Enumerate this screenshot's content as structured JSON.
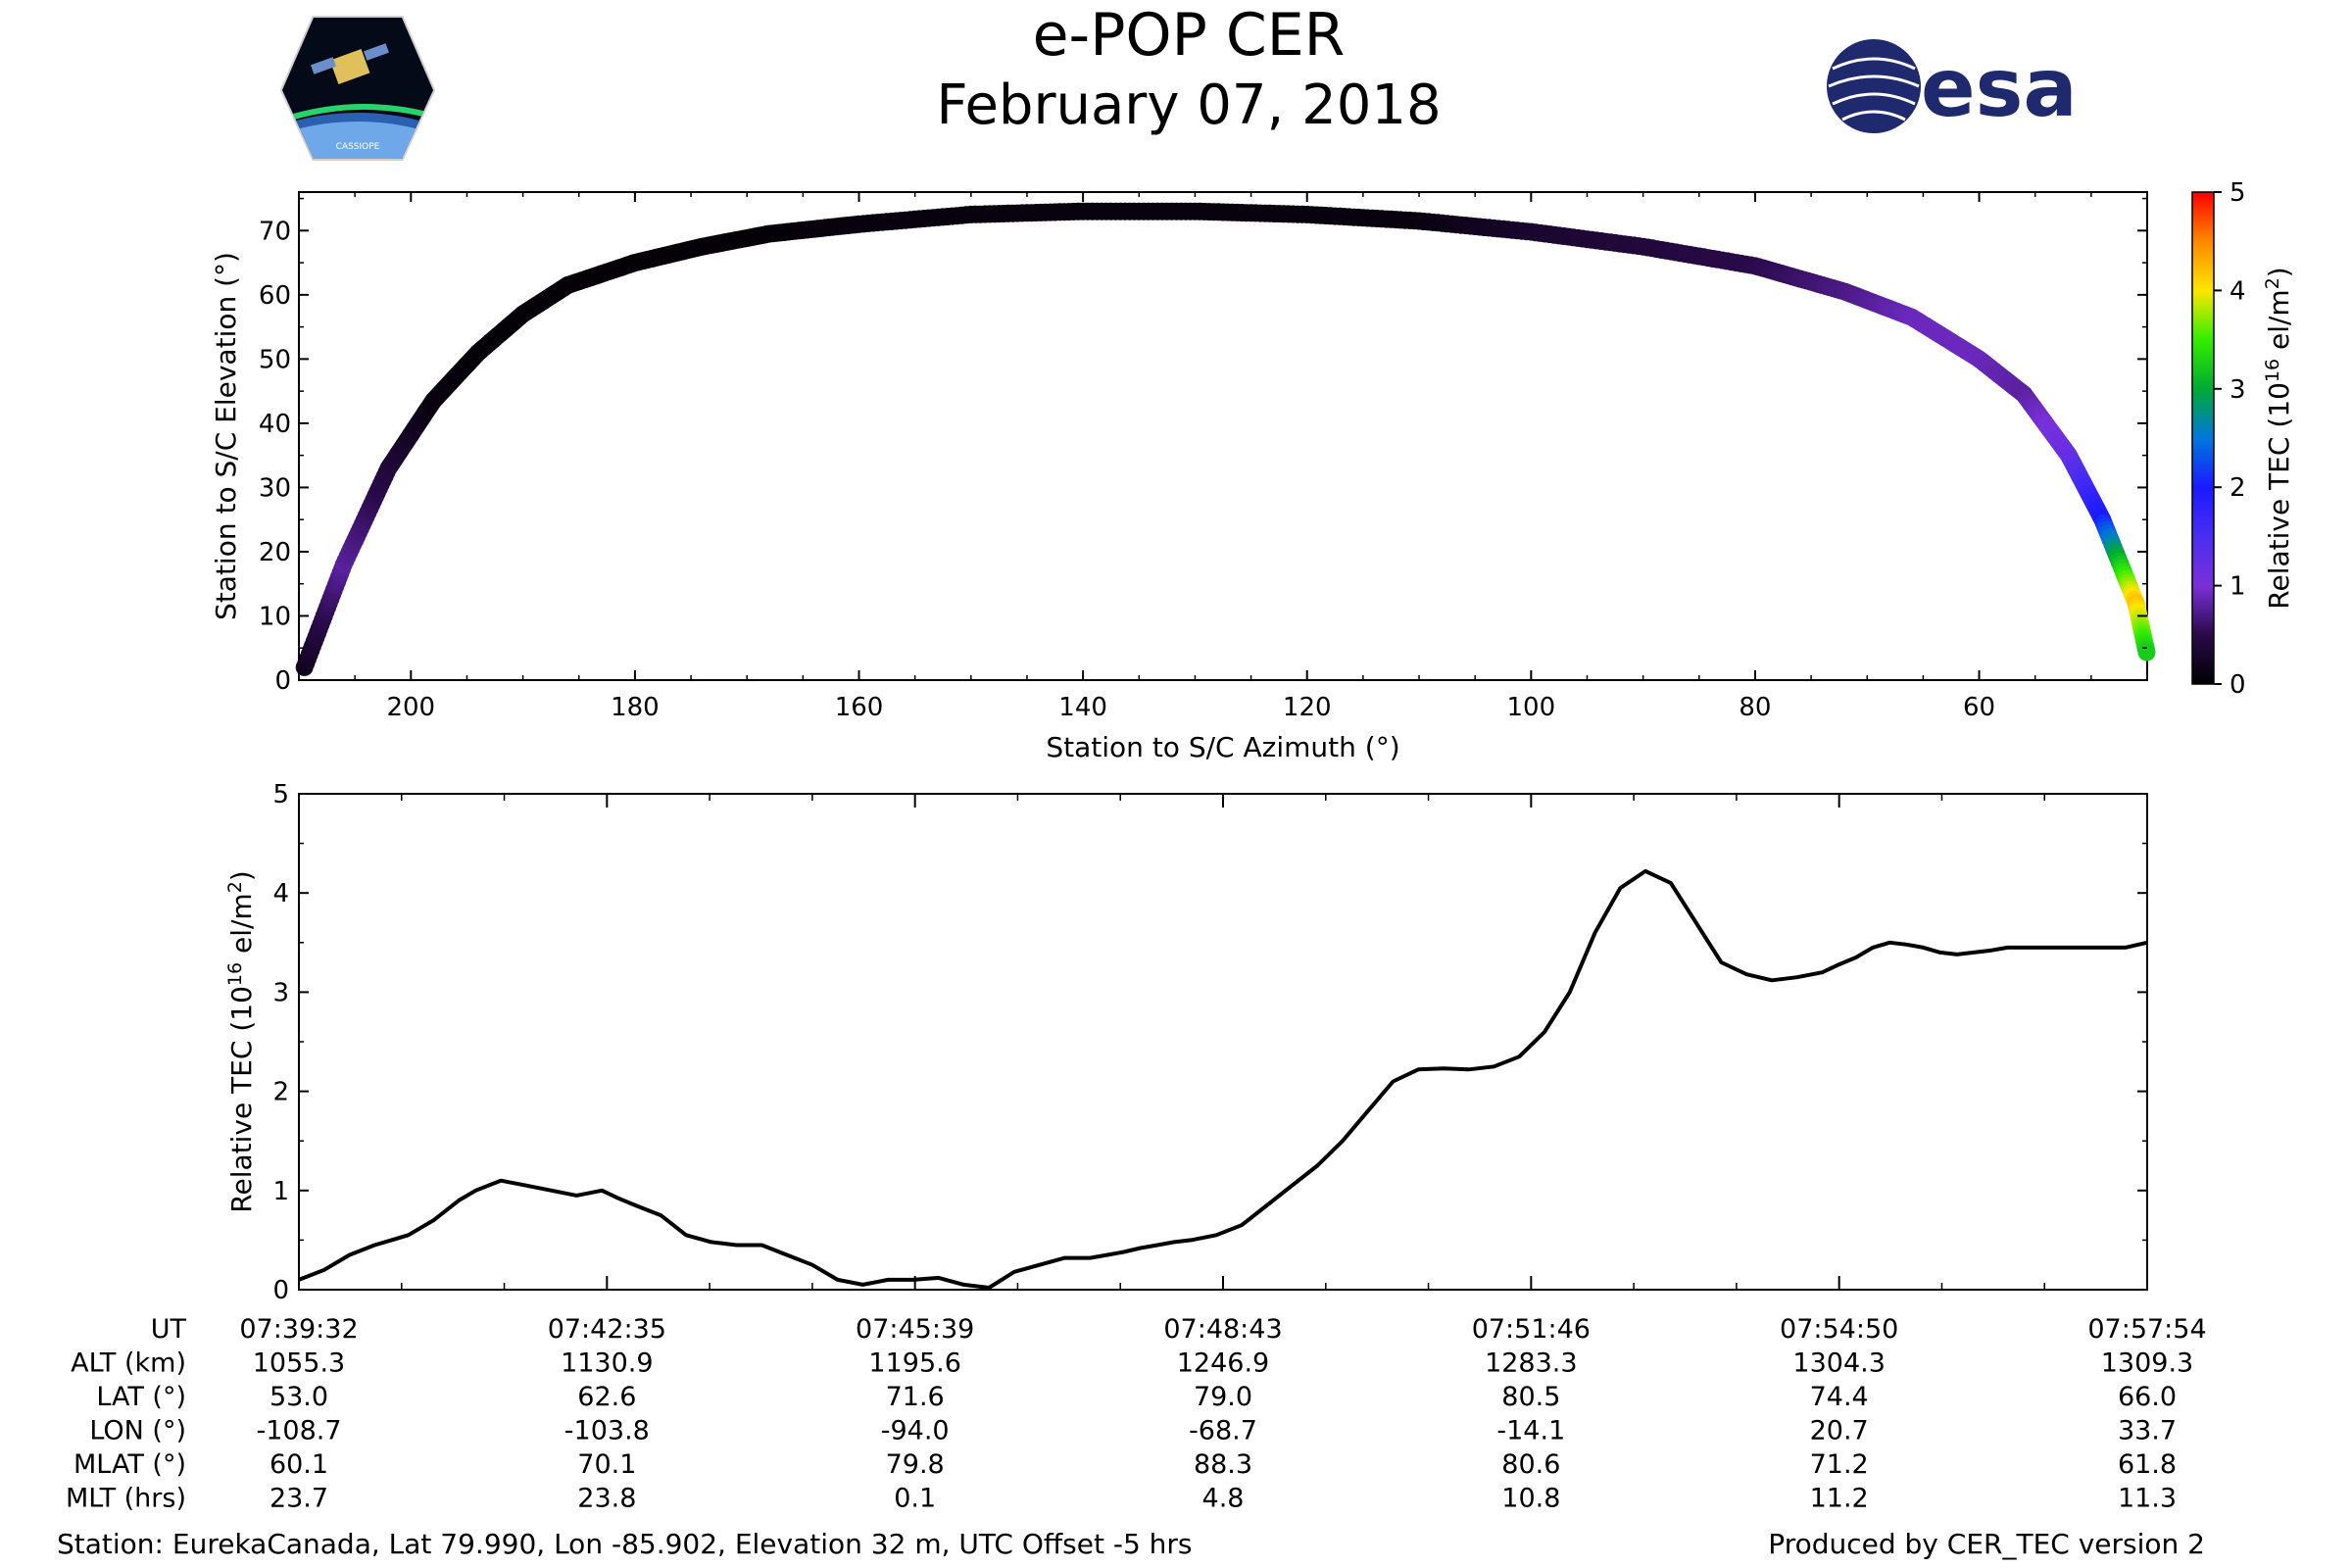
{
  "header": {
    "title": "e-POP CER",
    "date": "February 07, 2018",
    "left_logo": "cassiope-mission-badge",
    "right_logo": "esa-logo",
    "right_logo_text": "esa",
    "badge_text": "CASSIOPE"
  },
  "colors": {
    "arc_track": "#1b0f2e",
    "line": "#000000",
    "esa_blue": "#1f2a6e"
  },
  "chart_data": [
    {
      "type": "scatter",
      "title": "",
      "xlabel": "Station to S/C Azimuth (°)",
      "ylabel": "Station to S/C Elevation (°)",
      "xlim": [
        210,
        45
      ],
      "ylim": [
        0,
        76
      ],
      "xticks": [
        "200",
        "180",
        "160",
        "140",
        "120",
        "100",
        "80",
        "60"
      ],
      "yticks": [
        "0",
        "10",
        "20",
        "30",
        "40",
        "50",
        "60",
        "70"
      ],
      "colorbar": {
        "label_main": "Relative TEC (10",
        "label_sup": "16",
        "label_tail": " el/m",
        "label_sup2": "2",
        "label_end": ")",
        "range": [
          0,
          5
        ],
        "ticks": [
          "0",
          "1",
          "2",
          "3",
          "4",
          "5"
        ]
      },
      "x": [
        209.5,
        206,
        202,
        198,
        194,
        190,
        186,
        180,
        174,
        168,
        160,
        150,
        140,
        130,
        120,
        110,
        100,
        90,
        80,
        72,
        66,
        60,
        56,
        52,
        49,
        46,
        45
      ],
      "y": [
        2,
        18,
        33,
        43.5,
        51,
        57,
        61.5,
        65,
        67.5,
        69.5,
        71,
        72.5,
        73,
        73,
        72.5,
        71.5,
        69.8,
        67.5,
        64.5,
        60.5,
        56.5,
        50,
        44.5,
        35,
        25,
        12,
        4
      ],
      "tec": [
        0.2,
        0.8,
        0.4,
        0.1,
        0.05,
        0.05,
        0.05,
        0.05,
        0.05,
        0.05,
        0.1,
        0.1,
        0.1,
        0.1,
        0.1,
        0.1,
        0.3,
        0.4,
        0.5,
        0.7,
        0.9,
        0.9,
        0.8,
        1.2,
        2.0,
        4.2,
        3.2
      ]
    },
    {
      "type": "line",
      "title": "",
      "xlabel": "",
      "ylabel_main": "Relative TEC (10",
      "ylabel_sup": "16",
      "ylabel_tail": " el/m",
      "ylabel_sup2": "2",
      "ylabel_end": ")",
      "xlim": [
        0,
        1098
      ],
      "ylim": [
        0,
        5
      ],
      "yticks": [
        "0",
        "1",
        "2",
        "3",
        "4",
        "5"
      ],
      "series": [
        {
          "name": "Relative TEC",
          "x": [
            0,
            15,
            30,
            45,
            55,
            65,
            80,
            95,
            105,
            120,
            135,
            150,
            165,
            180,
            190,
            200,
            215,
            230,
            245,
            260,
            275,
            290,
            305,
            320,
            335,
            350,
            365,
            380,
            395,
            410,
            425,
            440,
            455,
            470,
            480,
            490,
            500,
            510,
            520,
            530,
            545,
            560,
            575,
            590,
            605,
            620,
            635,
            650,
            665,
            680,
            695,
            710,
            725,
            740,
            755,
            770,
            785,
            800,
            815,
            830,
            845,
            860,
            875,
            890,
            905,
            915,
            925,
            935,
            945,
            955,
            965,
            975,
            985,
            995,
            1005,
            1015,
            1030,
            1045,
            1060,
            1075,
            1085,
            1098
          ],
          "y": [
            0.1,
            0.2,
            0.35,
            0.45,
            0.5,
            0.55,
            0.7,
            0.9,
            1.0,
            1.1,
            1.05,
            1.0,
            0.95,
            1.0,
            0.92,
            0.85,
            0.75,
            0.55,
            0.48,
            0.45,
            0.45,
            0.35,
            0.25,
            0.1,
            0.05,
            0.1,
            0.1,
            0.12,
            0.05,
            0.02,
            0.18,
            0.25,
            0.32,
            0.32,
            0.35,
            0.38,
            0.42,
            0.45,
            0.48,
            0.5,
            0.55,
            0.65,
            0.85,
            1.05,
            1.25,
            1.5,
            1.8,
            2.1,
            2.22,
            2.23,
            2.22,
            2.25,
            2.35,
            2.6,
            3.0,
            3.6,
            4.05,
            4.22,
            4.1,
            3.7,
            3.3,
            3.18,
            3.12,
            3.15,
            3.2,
            3.28,
            3.35,
            3.45,
            3.5,
            3.48,
            3.45,
            3.4,
            3.38,
            3.4,
            3.42,
            3.45,
            3.45,
            3.45,
            3.45,
            3.45,
            3.45,
            3.5
          ]
        }
      ]
    }
  ],
  "table": {
    "row_labels": [
      "UT",
      "ALT (km)",
      "LAT (°)",
      "LON (°)",
      "MLAT (°)",
      "MLT (hrs)"
    ],
    "columns": [
      [
        "07:39:32",
        "1055.3",
        "53.0",
        "-108.7",
        "60.1",
        "23.7"
      ],
      [
        "07:42:35",
        "1130.9",
        "62.6",
        "-103.8",
        "70.1",
        "23.8"
      ],
      [
        "07:45:39",
        "1195.6",
        "71.6",
        "-94.0",
        "79.8",
        "0.1"
      ],
      [
        "07:48:43",
        "1246.9",
        "79.0",
        "-68.7",
        "88.3",
        "4.8"
      ],
      [
        "07:51:46",
        "1283.3",
        "80.5",
        "-14.1",
        "80.6",
        "10.8"
      ],
      [
        "07:54:50",
        "1304.3",
        "74.4",
        "20.7",
        "71.2",
        "11.2"
      ],
      [
        "07:57:54",
        "1309.3",
        "66.0",
        "33.7",
        "61.8",
        "11.3"
      ]
    ]
  },
  "footer": {
    "station": "Station: EurekaCanada, Lat 79.990, Lon -85.902, Elevation 32 m, UTC Offset -5 hrs",
    "produced_by": "Produced by CER_TEC version 2"
  }
}
